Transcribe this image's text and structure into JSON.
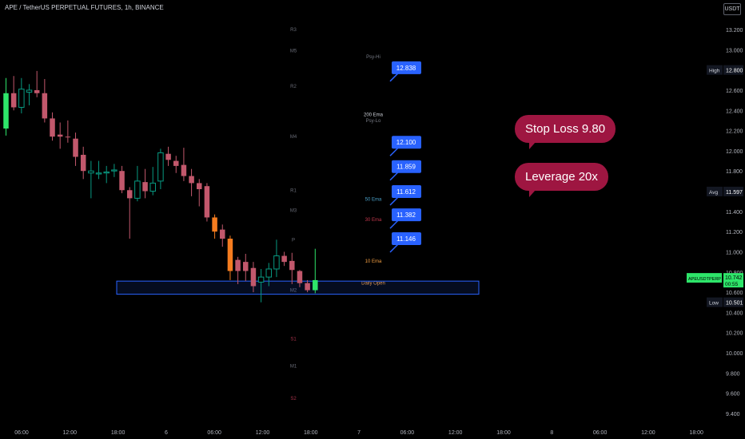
{
  "header": {
    "title": "APE / TetherUS PERPETUAL FUTURES, 1h, BINANCE",
    "currency": "USDT"
  },
  "callouts": {
    "stop_loss": "Stop Loss 9.80",
    "leverage": "Leverage 20x"
  },
  "colors": {
    "up": "#089981",
    "down": "#c2586c",
    "orange": "#f57c1f",
    "neon_up": "#2ee56a",
    "label_blue": "#2962ff",
    "callout": "#9e1641",
    "zone_border": "#2962ff"
  },
  "chart_data": {
    "type": "candlestick",
    "title": "APE / TetherUS PERPETUAL FUTURES, 1h, BINANCE",
    "ylim": [
      9.3,
      13.35
    ],
    "y_ticks": [
      "13.200",
      "13.000",
      "12.800",
      "12.600",
      "12.400",
      "12.200",
      "12.000",
      "11.800",
      "11.600",
      "11.400",
      "11.200",
      "11.000",
      "10.800",
      "10.600",
      "10.400",
      "10.200",
      "10.000",
      "9.800",
      "9.600",
      "9.400"
    ],
    "x_ticks": [
      "06:00",
      "12:00",
      "18:00",
      "6",
      "06:00",
      "12:00",
      "18:00",
      "7",
      "06:00",
      "12:00",
      "18:00",
      "8",
      "06:00",
      "12:00",
      "18:00"
    ],
    "candles": [
      {
        "o": 12.22,
        "h": 12.72,
        "l": 12.15,
        "c": 12.57,
        "s": "neon"
      },
      {
        "o": 12.57,
        "h": 12.74,
        "l": 12.4,
        "c": 12.43,
        "s": "down"
      },
      {
        "o": 12.43,
        "h": 12.72,
        "l": 12.37,
        "c": 12.61,
        "s": "up"
      },
      {
        "o": 12.58,
        "h": 12.66,
        "l": 12.45,
        "c": 12.6,
        "s": "up"
      },
      {
        "o": 12.6,
        "h": 12.79,
        "l": 12.53,
        "c": 12.57,
        "s": "down"
      },
      {
        "o": 12.57,
        "h": 12.71,
        "l": 12.28,
        "c": 12.32,
        "s": "down"
      },
      {
        "o": 12.32,
        "h": 12.38,
        "l": 12.1,
        "c": 12.14,
        "s": "down"
      },
      {
        "o": 12.16,
        "h": 12.28,
        "l": 12.02,
        "c": 12.14,
        "s": "down"
      },
      {
        "o": 12.14,
        "h": 12.3,
        "l": 12.08,
        "c": 12.14,
        "s": "down"
      },
      {
        "o": 12.12,
        "h": 12.18,
        "l": 11.85,
        "c": 11.94,
        "s": "down"
      },
      {
        "o": 11.96,
        "h": 12.04,
        "l": 11.72,
        "c": 11.8,
        "s": "down"
      },
      {
        "o": 11.8,
        "h": 11.9,
        "l": 11.53,
        "c": 11.78,
        "s": "up"
      },
      {
        "o": 11.77,
        "h": 11.9,
        "l": 11.72,
        "c": 11.78,
        "s": "up"
      },
      {
        "o": 11.78,
        "h": 11.85,
        "l": 11.68,
        "c": 11.79,
        "s": "up"
      },
      {
        "o": 11.8,
        "h": 11.87,
        "l": 11.74,
        "c": 11.81,
        "s": "up"
      },
      {
        "o": 11.8,
        "h": 11.85,
        "l": 11.58,
        "c": 11.61,
        "s": "down"
      },
      {
        "o": 11.61,
        "h": 11.64,
        "l": 11.13,
        "c": 11.53,
        "s": "down"
      },
      {
        "o": 11.53,
        "h": 11.85,
        "l": 11.5,
        "c": 11.7,
        "s": "up"
      },
      {
        "o": 11.69,
        "h": 11.82,
        "l": 11.53,
        "c": 11.6,
        "s": "down"
      },
      {
        "o": 11.6,
        "h": 11.84,
        "l": 11.56,
        "c": 11.68,
        "s": "up"
      },
      {
        "o": 11.7,
        "h": 12.02,
        "l": 11.62,
        "c": 11.98,
        "s": "up"
      },
      {
        "o": 11.97,
        "h": 12.04,
        "l": 11.85,
        "c": 11.91,
        "s": "down"
      },
      {
        "o": 11.9,
        "h": 11.95,
        "l": 11.78,
        "c": 11.85,
        "s": "down"
      },
      {
        "o": 11.86,
        "h": 12.03,
        "l": 11.7,
        "c": 11.75,
        "s": "down"
      },
      {
        "o": 11.75,
        "h": 11.82,
        "l": 11.55,
        "c": 11.68,
        "s": "down"
      },
      {
        "o": 11.68,
        "h": 11.72,
        "l": 11.45,
        "c": 11.62,
        "s": "down"
      },
      {
        "o": 11.65,
        "h": 11.68,
        "l": 11.3,
        "c": 11.34,
        "s": "down"
      },
      {
        "o": 11.34,
        "h": 11.37,
        "l": 11.13,
        "c": 11.2,
        "s": "orange"
      },
      {
        "o": 11.22,
        "h": 11.27,
        "l": 11.05,
        "c": 11.13,
        "s": "down"
      },
      {
        "o": 11.13,
        "h": 11.16,
        "l": 10.72,
        "c": 10.81,
        "s": "orange"
      },
      {
        "o": 10.92,
        "h": 10.95,
        "l": 10.68,
        "c": 10.81,
        "s": "down"
      },
      {
        "o": 10.9,
        "h": 10.98,
        "l": 10.71,
        "c": 10.81,
        "s": "down"
      },
      {
        "o": 10.84,
        "h": 10.9,
        "l": 10.6,
        "c": 10.66,
        "s": "down"
      },
      {
        "o": 10.7,
        "h": 10.83,
        "l": 10.5,
        "c": 10.75,
        "s": "up"
      },
      {
        "o": 10.75,
        "h": 10.89,
        "l": 10.66,
        "c": 10.83,
        "s": "up"
      },
      {
        "o": 10.83,
        "h": 11.12,
        "l": 10.75,
        "c": 10.96,
        "s": "up"
      },
      {
        "o": 10.96,
        "h": 11.0,
        "l": 10.86,
        "c": 10.9,
        "s": "down"
      },
      {
        "o": 10.91,
        "h": 10.99,
        "l": 10.68,
        "c": 10.82,
        "s": "down"
      },
      {
        "o": 10.81,
        "h": 10.82,
        "l": 10.65,
        "c": 10.69,
        "s": "down"
      },
      {
        "o": 10.69,
        "h": 10.72,
        "l": 10.6,
        "c": 10.62,
        "s": "down"
      },
      {
        "o": 10.62,
        "h": 11.03,
        "l": 10.59,
        "c": 10.72,
        "s": "neon"
      }
    ],
    "price_labels": [
      "12.838",
      "12.100",
      "11.859",
      "11.612",
      "11.382",
      "11.146"
    ],
    "pivot_labels": [
      {
        "t": "R3",
        "y": 13.2
      },
      {
        "t": "M5",
        "y": 12.99
      },
      {
        "t": "R2",
        "y": 12.64
      },
      {
        "t": "M4",
        "y": 12.14
      },
      {
        "t": "R1",
        "y": 11.61
      },
      {
        "t": "M3",
        "y": 11.41
      },
      {
        "t": "P",
        "y": 11.12
      },
      {
        "t": "M2",
        "y": 10.62
      },
      {
        "t": "S1",
        "y": 10.14
      },
      {
        "t": "M1",
        "y": 9.87
      },
      {
        "t": "S2",
        "y": 9.55
      }
    ],
    "ma_labels": [
      {
        "t": "Psy-Hi",
        "y": 12.93,
        "c": "#787b86"
      },
      {
        "t": "200 Ema",
        "y": 12.36,
        "c": "#d1d4dc"
      },
      {
        "t": "Psy-Lo",
        "y": 12.3,
        "c": "#787b86"
      },
      {
        "t": "50 Ema",
        "y": 11.52,
        "c": "#4aa0c8"
      },
      {
        "t": "30 Ema",
        "y": 11.32,
        "c": "#c2364c"
      },
      {
        "t": "10 Ema",
        "y": 10.91,
        "c": "#f5a043"
      },
      {
        "t": "Daily Open",
        "y": 10.69,
        "c": "#f5a043"
      }
    ],
    "axis_markers": [
      {
        "t": "High",
        "v": "12.800",
        "y": 12.8,
        "bg": "#131722"
      },
      {
        "t": "Avg",
        "v": "11.597",
        "y": 11.597,
        "bg": "#131722"
      },
      {
        "t": "Low",
        "v": "10.501",
        "y": 10.501,
        "bg": "#131722"
      }
    ],
    "symbol_tag": {
      "t": "APEUSDTPERP",
      "v": "10.742",
      "timer": "00:55",
      "y": 10.742
    },
    "zone": {
      "top": 10.71,
      "bottom": 10.58
    }
  }
}
